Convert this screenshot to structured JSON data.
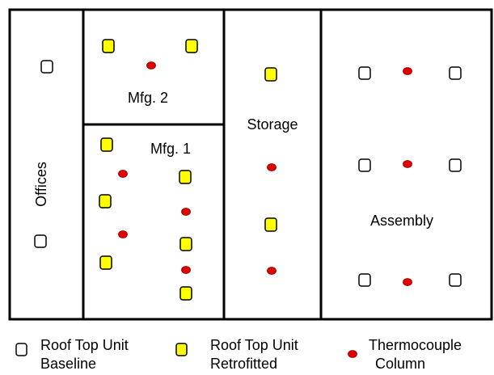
{
  "rooms": {
    "offices": "Offices",
    "mfg2": "Mfg. 2",
    "mfg1": "Mfg. 1",
    "storage": "Storage",
    "assembly": "Assembly"
  },
  "legend": {
    "baseline": {
      "line1": "Roof Top Unit",
      "line2": "Baseline"
    },
    "retrofitted": {
      "line1": "Roof Top Unit",
      "line2": "Retrofitted"
    },
    "thermocouple": {
      "line1": "Thermocouple",
      "line2": "Column"
    }
  },
  "colors": {
    "outline": "#000000",
    "baseline_fill": "#ffffff",
    "retrofitted_fill": "#ffff00",
    "thermocouple_fill": "#e00000"
  }
}
